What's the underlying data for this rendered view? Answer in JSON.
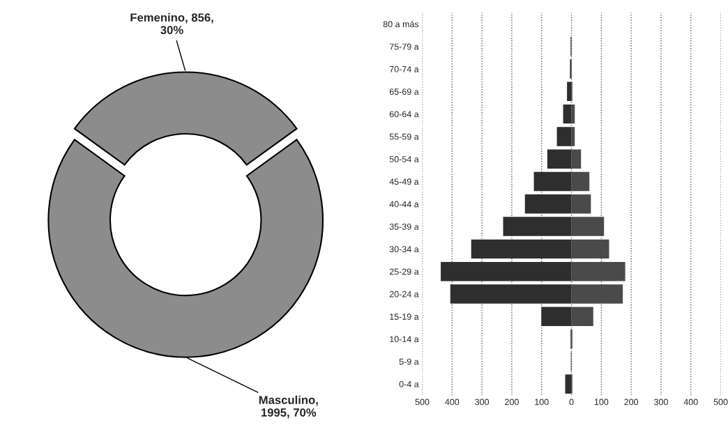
{
  "chart_data": [
    {
      "type": "donut",
      "categories": [
        "Femenino",
        "Masculino"
      ],
      "values": [
        856,
        1995
      ],
      "colors": [
        "#8c8c8c",
        "#8c8c8c"
      ],
      "value_labels": [
        ", 856,\n30%",
        ",\n1995, 70%"
      ]
    },
    {
      "type": "bar",
      "orientation": "horizontal",
      "stacked": true,
      "grid": "x",
      "categories": [
        "80 a más",
        "75-79 a",
        "70-74 a",
        "65-69 a",
        "60-64 a",
        "55-59 a",
        "50-54 a",
        "45-49 a",
        "40-44 a",
        "35-39 a",
        "30-34 a",
        "25-29 a",
        "20-24 a",
        "15-19 a",
        "10-14 a",
        "5-9 a",
        "0-4 a"
      ],
      "series": [
        {
          "color": "#2e2e2e",
          "values": [
            0,
            -3,
            -5,
            -15,
            -28,
            -49,
            -81,
            -126,
            -156,
            -229,
            -336,
            -438,
            -406,
            -101,
            -3,
            -2,
            -21
          ]
        },
        {
          "color": "#4a4a4a",
          "values": [
            0,
            null,
            null,
            3,
            11,
            11,
            32,
            60,
            65,
            109,
            126,
            180,
            172,
            73,
            3,
            0,
            3
          ]
        }
      ],
      "xlim": [
        -500,
        500
      ],
      "xticks": [
        {
          "value": -500,
          "label": "500"
        },
        {
          "value": -400,
          "label": "400"
        },
        {
          "value": -300,
          "label": "300"
        },
        {
          "value": -200,
          "label": "200"
        },
        {
          "value": -100,
          "label": "100"
        },
        0,
        100,
        200,
        300,
        400,
        500
      ]
    }
  ]
}
